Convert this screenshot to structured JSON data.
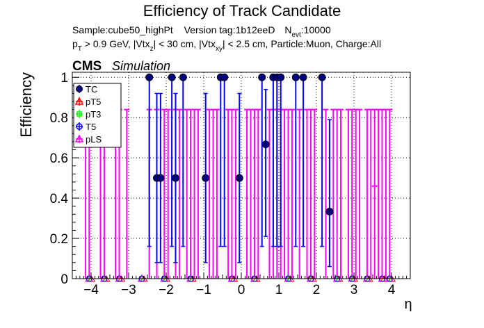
{
  "title": "Efficiency of Track Candidate",
  "info_line1": {
    "sample": "Sample:cube50_highPt",
    "version": "Version tag:1b12eeD",
    "nevt_prefix": "N",
    "nevt_sub": "evt",
    "nevt_value": ":10000"
  },
  "info_line2": [
    {
      "t": "p",
      "sub": false
    },
    {
      "t": "T",
      "sub": true
    },
    {
      "t": " > 0.9 GeV, |Vtx",
      "sub": false
    },
    {
      "t": "z",
      "sub": true
    },
    {
      "t": "| < 30 cm, |Vtx",
      "sub": false
    },
    {
      "t": "xy",
      "sub": true
    },
    {
      "t": "| < 2.5 cm, Particle:Muon, Charge:All",
      "sub": false
    }
  ],
  "cms_label": "CMS",
  "cms_sublabel": "Simulation",
  "colors": {
    "TC": "#000080",
    "pT5": "#ff0000",
    "pT3": "#00ff00",
    "T5": "#0000ff",
    "pLS": "#ff00ff"
  },
  "chart_data": {
    "type": "scatter",
    "xlabel": "η",
    "ylabel": "Efficiency",
    "xlim": [
      -4.5,
      4.5
    ],
    "ylim": [
      0,
      1.025
    ],
    "grid": true,
    "legend": "top-left",
    "x_ticks": [
      -4,
      -3,
      -2,
      -1,
      0,
      1,
      2,
      3,
      4
    ],
    "x_tick_labels": [
      "−4",
      "−3",
      "−2",
      "−1",
      "0",
      "1",
      "2",
      "3",
      "4"
    ],
    "y_ticks": [
      0,
      0.2,
      0.4,
      0.6,
      0.8,
      1
    ],
    "y_tick_labels": [
      "0",
      "0.2",
      "0.4",
      "0.6",
      "0.8",
      "1"
    ],
    "series": [
      {
        "name": "TC",
        "marker": "circle-filled",
        "points": [
          {
            "x": -4.05,
            "y": 0
          },
          {
            "x": -3.65,
            "y": 0
          },
          {
            "x": -3.25,
            "y": 0
          },
          {
            "x": -2.45,
            "y": 1.0
          },
          {
            "x": -2.25,
            "y": 0.5
          },
          {
            "x": -2.15,
            "y": 0.5
          },
          {
            "x": -1.85,
            "y": 1.0
          },
          {
            "x": -1.75,
            "y": 0.5
          },
          {
            "x": -1.55,
            "y": 1.0
          },
          {
            "x": -0.95,
            "y": 0.5
          },
          {
            "x": -0.55,
            "y": 1.0
          },
          {
            "x": -0.45,
            "y": 1.0
          },
          {
            "x": -0.05,
            "y": 0.5
          },
          {
            "x": 0.55,
            "y": 1.0
          },
          {
            "x": 0.65,
            "y": 0.667
          },
          {
            "x": 0.85,
            "y": 1.0
          },
          {
            "x": 0.95,
            "y": 1.0
          },
          {
            "x": 1.05,
            "y": 1.0
          },
          {
            "x": 1.45,
            "y": 1.0
          },
          {
            "x": 1.65,
            "y": 1.0
          },
          {
            "x": 2.15,
            "y": 1.0
          },
          {
            "x": 2.35,
            "y": 0.333
          },
          {
            "x": -2.65,
            "y": 0
          },
          {
            "x": -2.05,
            "y": 0
          },
          {
            "x": -1.35,
            "y": 0
          },
          {
            "x": -0.25,
            "y": 0
          },
          {
            "x": 0.35,
            "y": 0
          },
          {
            "x": 1.25,
            "y": 0
          },
          {
            "x": 1.85,
            "y": 0
          },
          {
            "x": 2.55,
            "y": 0
          },
          {
            "x": 2.95,
            "y": 0
          },
          {
            "x": 3.35,
            "y": 0
          },
          {
            "x": 3.75,
            "y": 0
          },
          {
            "x": 3.95,
            "y": 0
          }
        ]
      },
      {
        "name": "pT5",
        "marker": "triangle-open",
        "points": []
      },
      {
        "name": "pT3",
        "marker": "cross-open",
        "points": []
      },
      {
        "name": "T5",
        "marker": "circle-open",
        "points": []
      },
      {
        "name": "pLS",
        "marker": "triangle-open",
        "points": [
          {
            "x": -4.05,
            "y": 0
          },
          {
            "x": -3.65,
            "y": 0
          },
          {
            "x": -3.25,
            "y": 0
          },
          {
            "x": -2.65,
            "y": 0
          },
          {
            "x": -2.05,
            "y": 0
          },
          {
            "x": -1.35,
            "y": 0
          },
          {
            "x": -0.25,
            "y": 0
          },
          {
            "x": 0.35,
            "y": 0
          },
          {
            "x": 1.25,
            "y": 0
          },
          {
            "x": 1.85,
            "y": 0
          },
          {
            "x": 2.55,
            "y": 0
          },
          {
            "x": 2.95,
            "y": 0
          },
          {
            "x": 3.35,
            "y": 0
          },
          {
            "x": 3.75,
            "y": 0
          },
          {
            "x": 3.95,
            "y": 0
          }
        ]
      }
    ],
    "error_bars": {
      "TC": [
        {
          "x": -2.25,
          "lo": 0.08,
          "hi": 0.92
        },
        {
          "x": -2.15,
          "lo": 0.08,
          "hi": 0.92
        },
        {
          "x": -1.75,
          "lo": 0.08,
          "hi": 0.92
        },
        {
          "x": -0.95,
          "lo": 0.08,
          "hi": 0.92
        },
        {
          "x": -0.05,
          "lo": 0.08,
          "hi": 0.92
        },
        {
          "x": 0.65,
          "lo": 0.21,
          "hi": 0.94
        },
        {
          "x": 2.35,
          "lo": 0.06,
          "hi": 0.79
        },
        {
          "x": -2.45,
          "lo": 0.16,
          "hi": 1.0
        },
        {
          "x": -1.85,
          "lo": 0.16,
          "hi": 1.0
        },
        {
          "x": -1.55,
          "lo": 0.16,
          "hi": 1.0
        },
        {
          "x": -0.55,
          "lo": 0.16,
          "hi": 1.0
        },
        {
          "x": -0.45,
          "lo": 0.16,
          "hi": 1.0
        },
        {
          "x": 0.55,
          "lo": 0.16,
          "hi": 1.0
        },
        {
          "x": 0.85,
          "lo": 0.16,
          "hi": 1.0
        },
        {
          "x": 0.95,
          "lo": 0.16,
          "hi": 1.0
        },
        {
          "x": 1.05,
          "lo": 0.16,
          "hi": 1.0
        },
        {
          "x": 1.45,
          "lo": 0.16,
          "hi": 1.0
        },
        {
          "x": 1.65,
          "lo": 0.16,
          "hi": 1.0
        },
        {
          "x": 2.15,
          "lo": 0.16,
          "hi": 1.0
        }
      ],
      "pLS_x": [
        -4.15,
        -4.05,
        -3.75,
        -3.65,
        -3.35,
        -3.25,
        -3.05,
        -2.45,
        -2.25,
        -2.05,
        -1.95,
        -1.75,
        -1.65,
        -1.45,
        -1.35,
        -1.25,
        -1.15,
        -0.85,
        -0.75,
        -0.65,
        -0.35,
        -0.25,
        -0.15,
        0.15,
        0.25,
        0.35,
        0.45,
        0.75,
        0.85,
        0.95,
        1.05,
        1.15,
        1.25,
        1.35,
        1.55,
        1.75,
        1.85,
        1.95,
        2.25,
        2.45,
        2.55,
        2.65,
        2.85,
        2.95,
        3.05,
        3.15,
        3.35,
        3.45,
        3.55,
        3.65,
        3.75,
        3.85,
        3.95
      ],
      "pLS_hi": 0.84,
      "pLS_short": [
        {
          "x": 3.55,
          "hi": 0.46
        }
      ]
    }
  }
}
